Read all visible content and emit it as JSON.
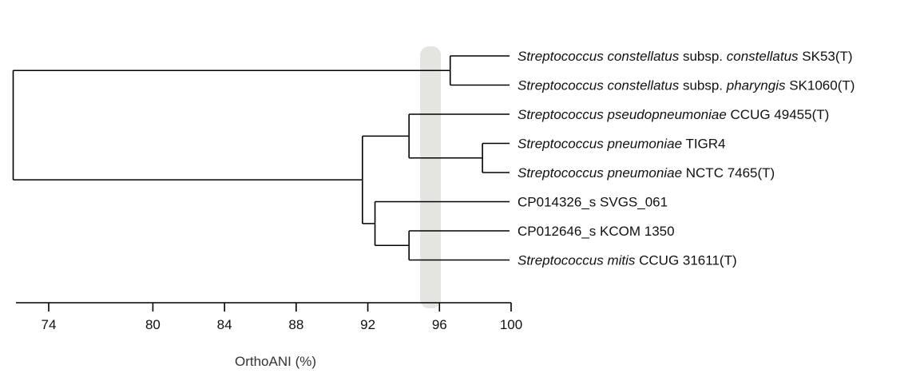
{
  "axis": {
    "title": "OrthoANI (%)",
    "ticks": [
      "74",
      "80",
      "84",
      "88",
      "92",
      "96",
      "100"
    ],
    "color": "#000000"
  },
  "highlight": {
    "value": 95.5,
    "color": "#d6d6d0"
  },
  "leaves": [
    {
      "id": "l1",
      "parts": [
        {
          "t": "Streptococcus constellatus",
          "i": true
        },
        {
          "t": " subsp. ",
          "i": false
        },
        {
          "t": "constellatus",
          "i": true
        },
        {
          "t": " SK53(T)",
          "i": false
        }
      ]
    },
    {
      "id": "l2",
      "parts": [
        {
          "t": "Streptococcus constellatus",
          "i": true
        },
        {
          "t": " subsp. ",
          "i": false
        },
        {
          "t": "pharyngis",
          "i": true
        },
        {
          "t": " SK1060(T)",
          "i": false
        }
      ]
    },
    {
      "id": "l3",
      "parts": [
        {
          "t": "Streptococcus pseudopneumoniae",
          "i": true
        },
        {
          "t": " CCUG 49455(T)",
          "i": false
        }
      ]
    },
    {
      "id": "l4",
      "parts": [
        {
          "t": "Streptococcus pneumoniae",
          "i": true
        },
        {
          "t": " TIGR4",
          "i": false
        }
      ]
    },
    {
      "id": "l5",
      "parts": [
        {
          "t": "Streptococcus pneumoniae",
          "i": true
        },
        {
          "t": " NCTC 7465(T)",
          "i": false
        }
      ]
    },
    {
      "id": "l6",
      "parts": [
        {
          "t": "CP014326_s SVGS_061",
          "i": false
        }
      ]
    },
    {
      "id": "l7",
      "parts": [
        {
          "t": "CP012646_s KCOM 1350",
          "i": false
        }
      ]
    },
    {
      "id": "l8",
      "parts": [
        {
          "t": "Streptococcus mitis",
          "i": true
        },
        {
          "t": " CCUG 31611(T)",
          "i": false
        }
      ]
    }
  ],
  "nodes": [
    {
      "id": "n1",
      "value": 96.6,
      "children": [
        "l1",
        "l2"
      ]
    },
    {
      "id": "n2",
      "value": 98.4,
      "children": [
        "l4",
        "l5"
      ]
    },
    {
      "id": "n3",
      "value": 94.3,
      "children": [
        "l3",
        "n2"
      ]
    },
    {
      "id": "n4",
      "value": 94.3,
      "children": [
        "l7",
        "l8"
      ]
    },
    {
      "id": "n5",
      "value": 92.4,
      "children": [
        "l6",
        "n4"
      ]
    },
    {
      "id": "n6",
      "value": 91.7,
      "children": [
        "n3",
        "n5"
      ]
    },
    {
      "id": "root",
      "value": 72.2,
      "children": [
        "n1",
        "n6"
      ]
    }
  ]
}
